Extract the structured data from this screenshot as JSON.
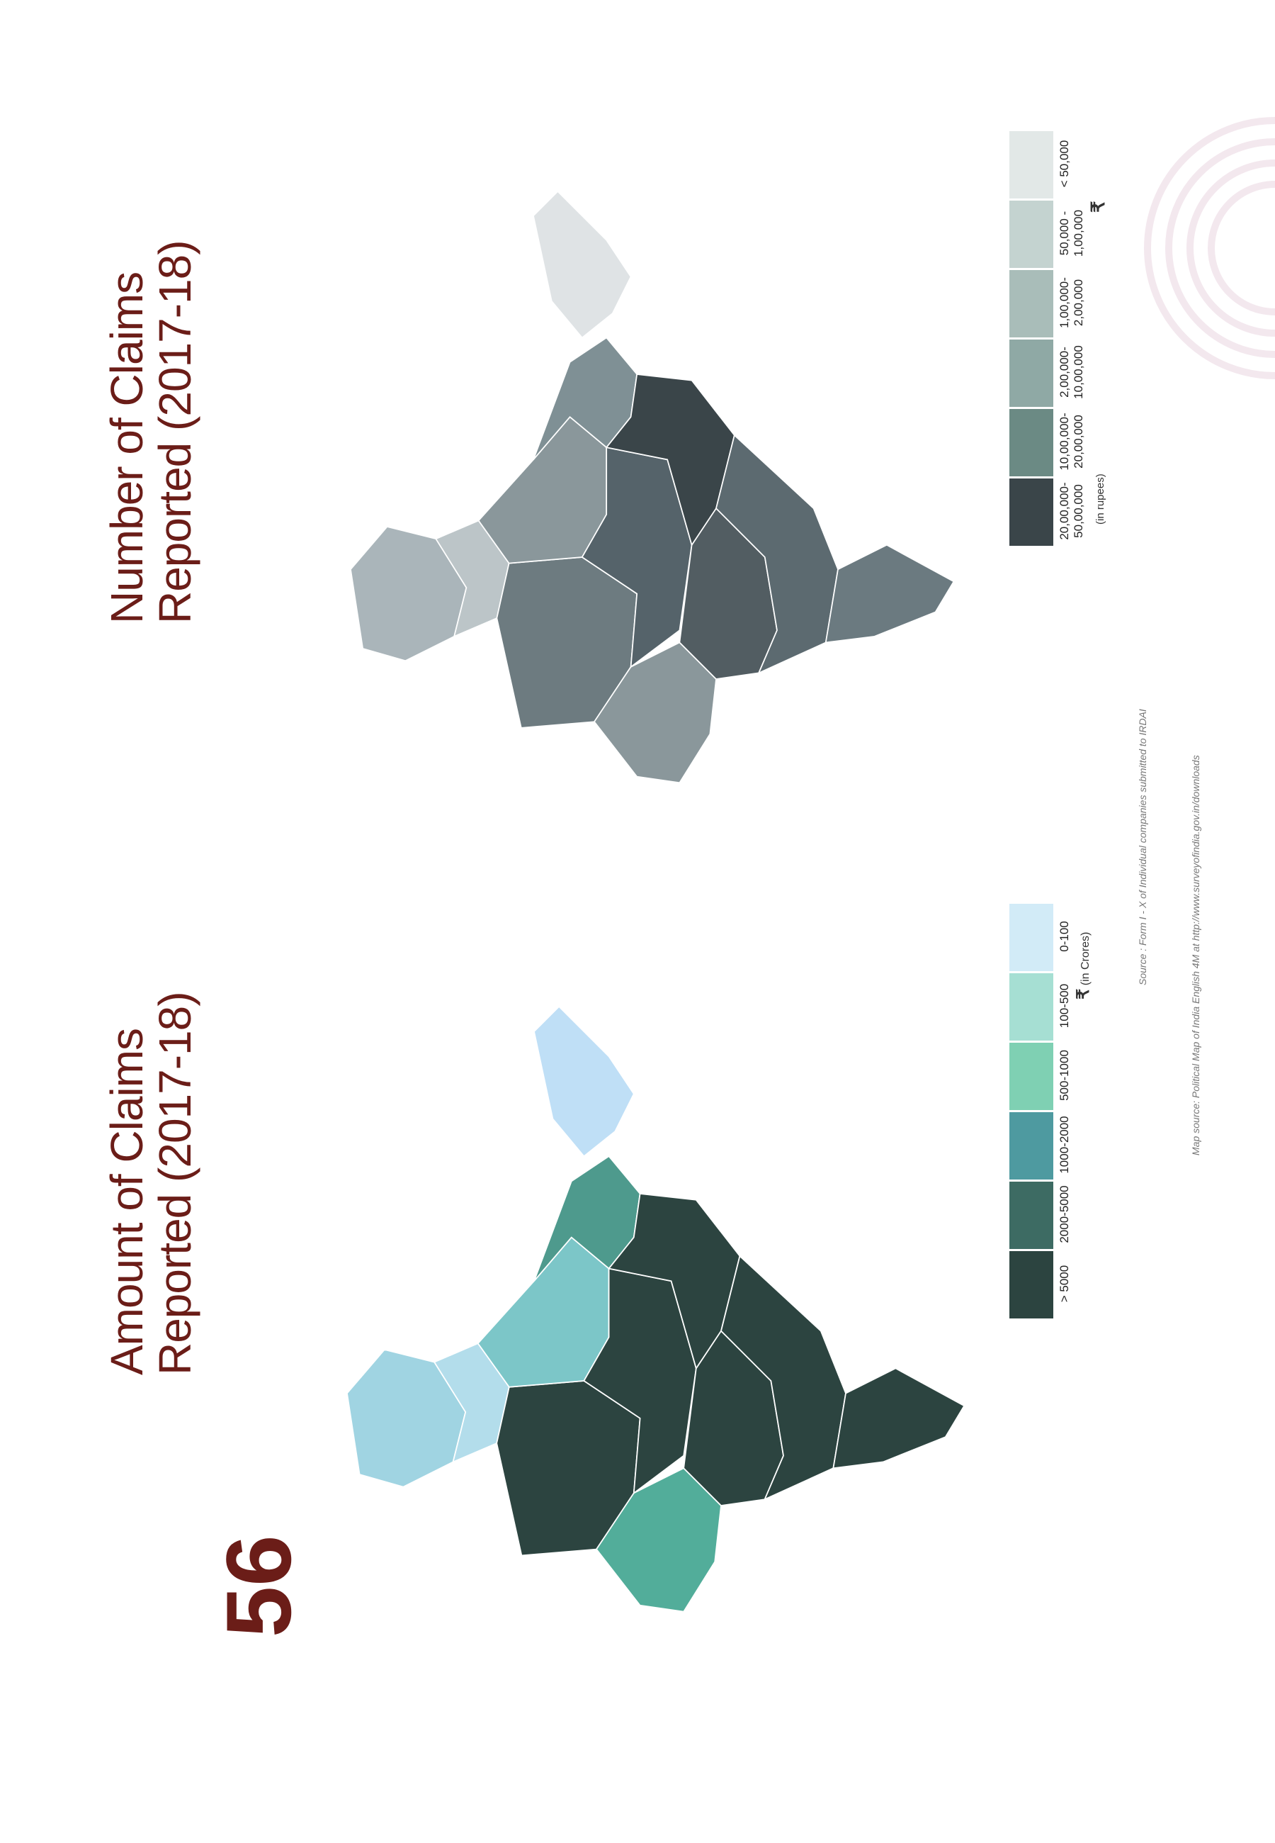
{
  "page_number": "56",
  "maps": [
    {
      "title": [
        "Amount of Claims",
        "Reported (2017-18)"
      ],
      "currency": "₹",
      "unit": "(in Crores)",
      "legend": [
        {
          "label": "> 5000",
          "color": "#2c4440"
        },
        {
          "label": "2000-5000",
          "color": "#3d6b63"
        },
        {
          "label": "1000-2000",
          "color": "#4e9aa0"
        },
        {
          "label": "500-1000",
          "color": "#7fd0b3"
        },
        {
          "label": "100-500",
          "color": "#a6dfd3"
        },
        {
          "label": "0-100",
          "color": "#d2ebf7"
        }
      ],
      "region_colors": [
        "#a0d4e2",
        "#b3ddeb",
        "#2c4440",
        "#52ad9a",
        "#7cc6c8",
        "#2c4440",
        "#2c4440",
        "#4e9a8d",
        "#2c4440",
        "#2c4440",
        "#2c4440",
        "#bfdff6"
      ]
    },
    {
      "title": [
        "Number of Claims",
        "Reported (2017-18)"
      ],
      "currency": "₹",
      "unit": "(in rupees)",
      "legend": [
        {
          "label": "20,00,000- 50,00,000",
          "color": "#3a4549"
        },
        {
          "label": "10,00,000- 20,00,000",
          "color": "#6b8a84"
        },
        {
          "label": "2,00,000- 10,00,000",
          "color": "#8fa9a5"
        },
        {
          "label": "1,00,000- 2,00,000",
          "color": "#a9bdb9"
        },
        {
          "label": "50,000 - 1,00,000",
          "color": "#c4d3d0"
        },
        {
          "label": "< 50,000",
          "color": "#e2e8e7"
        }
      ],
      "region_colors": [
        "#aab5ba",
        "#bcc5c8",
        "#6d7b80",
        "#8a979b",
        "#8a979b",
        "#55636a",
        "#525d62",
        "#7f9095",
        "#3a4549",
        "#5c6a70",
        "#6b7a80",
        "#dfe3e5"
      ]
    }
  ],
  "source": "Source : Form I - X of Individual companies submitted to IRDAI",
  "map_source": "Map source: Political Map of India English 4M at http://www.surveyofindia.gov.in/downloads"
}
